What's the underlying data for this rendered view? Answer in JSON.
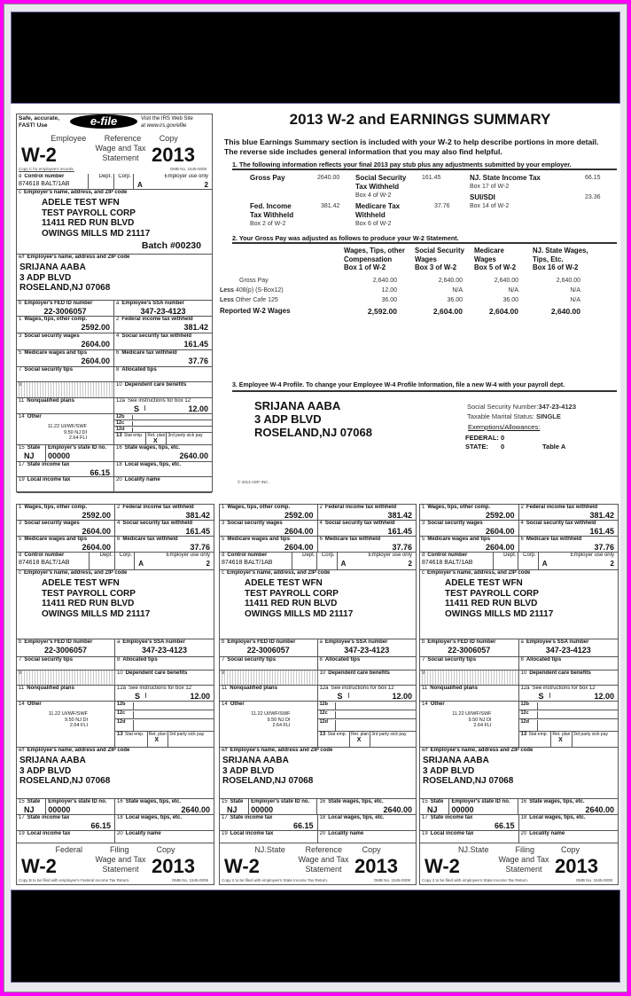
{
  "colors": {
    "frame": "#ff00ff",
    "band": "#000000"
  },
  "efile": {
    "left": "Safe, accurate, FAST! Use",
    "logo": "e-file",
    "right1": "Visit the IRS Web Site",
    "right2": "at www.irs.gov/efile"
  },
  "w2": {
    "form": "W-2",
    "year": "2013",
    "wage_tax": "Wage   and   Tax",
    "statement": "Statement",
    "omb": "OMB No. 1545-0008",
    "batch": "Batch #00230",
    "boxes": {
      "a": {
        "code": "a",
        "label": "Employee's SSA number",
        "value": "347-23-4123"
      },
      "b": {
        "code": "b",
        "label": "Employer's FED ID number",
        "value": "22-3006057"
      },
      "c": {
        "code": "c",
        "label": "Employer's name, address, and ZIP code",
        "lines": [
          "ADELE TEST WFN",
          "TEST PAYROLL CORP",
          "11411 RED RUN BLVD",
          "OWINGS MILLS MD 21117"
        ]
      },
      "d": {
        "code": "d",
        "label": "Control number",
        "value": "874618   BALT/1AB",
        "dept": "Dept.",
        "corp": "Corp.",
        "emp_use": "Employer use only",
        "emp_use_a": "A",
        "emp_use_b": "2"
      },
      "ef": {
        "code": "e/f",
        "label": "Employee's name, address and ZIP code",
        "lines": [
          "SRIJANA AABA",
          "3 ADP BLVD",
          "ROSELAND,NJ 07068"
        ]
      },
      "1": {
        "code": "1",
        "label": "Wages, tips, other comp.",
        "value": "2592.00"
      },
      "2": {
        "code": "2",
        "label": "Federal income tax withheld",
        "value": "381.42"
      },
      "3": {
        "code": "3",
        "label": "Social security wages",
        "value": "2604.00"
      },
      "4": {
        "code": "4",
        "label": "Social security tax withheld",
        "value": "161.45"
      },
      "5": {
        "code": "5",
        "label": "Medicare wages and tips",
        "value": "2604.00"
      },
      "6": {
        "code": "6",
        "label": "Medicare tax withheld",
        "value": "37.76"
      },
      "7": {
        "code": "7",
        "label": "Social security tips"
      },
      "8": {
        "code": "8",
        "label": "Allocated tips"
      },
      "9": {
        "code": "9"
      },
      "10": {
        "code": "10",
        "label": "Dependent care benefits"
      },
      "11": {
        "code": "11",
        "label": "Nonqualified plans"
      },
      "12a": {
        "code": "12a",
        "label": "See instructions for box 12",
        "letter": "S",
        "value": "12.00"
      },
      "12b": {
        "code": "12b"
      },
      "12c": {
        "code": "12c"
      },
      "12d": {
        "code": "12d"
      },
      "13": {
        "code": "13",
        "stat": "Stat emp.",
        "ret": "Ret. plan",
        "sick": "3rd party sick pay",
        "mark": "X"
      },
      "14": {
        "code": "14",
        "label": "Other",
        "lines": [
          "11.22 UI/WF/SWF",
          "9.50 NJ DI",
          "2.64 FLI"
        ]
      },
      "15": {
        "code": "15",
        "label": "State",
        "id_label": "Employer's state ID no.",
        "value": "NJ",
        "id": "00000"
      },
      "16": {
        "code": "16",
        "label": "State wages, tips, etc.",
        "value": "2640.00"
      },
      "17": {
        "code": "17",
        "label": "State income tax",
        "value": "66.15"
      },
      "18": {
        "code": "18",
        "label": "Local wages, tips, etc."
      },
      "19": {
        "code": "19",
        "label": "Local income tax"
      },
      "20": {
        "code": "20",
        "label": "Locality name"
      }
    },
    "copies": [
      {
        "t1": "Employee",
        "t2": "Reference",
        "t3": "Copy",
        "note": "Copy C for employee's records."
      },
      {
        "t1": "Federal",
        "t2": "Filing",
        "t3": "Copy",
        "note": "Copy B to be filed with employee's Federal Income Tax Return."
      },
      {
        "t1": "NJ.State",
        "t2": "Reference",
        "t3": "Copy",
        "note": "Copy 2 to be filed with employee's State Income Tax Return."
      },
      {
        "t1": "NJ.State",
        "t2": "Filing",
        "t3": "Copy",
        "note": "Copy 2 to be filed with employee's State Income Tax Return."
      }
    ]
  },
  "summary": {
    "title": "2013 W-2 and EARNINGS SUMMARY",
    "intro1": "This blue Earnings Summary section is included with your W-2 to help describe portions in more detail.",
    "intro2": "The reverse side includes general information that you may also find helpful.",
    "s1_heading": "1. The following  information reflects your final 2013 pay stub plus any adjustments submitted by your employer.",
    "s1": [
      {
        "label": "Gross Pay",
        "value": "2640.00"
      },
      {
        "label": "Fed. Income",
        "label2": "Tax Withheld",
        "sub": "Box 2 of W-2",
        "value": "381.42"
      },
      {
        "label": "Social Security",
        "label2": "Tax Withheld",
        "sub": "Box 4 of W-2",
        "value": "161.45"
      },
      {
        "label": "Medicare Tax",
        "label2": "Withheld",
        "sub": "Box 6 of W-2",
        "value": "37.76"
      },
      {
        "label": "NJ. State Income Tax",
        "sub": "Box 17 of W-2",
        "value": "66.15"
      },
      {
        "label": "SUI/SDI",
        "sub": "Box 14 of W-2",
        "value": "23.36"
      }
    ],
    "s2_heading": "2. Your Gross Pay was adjusted as follows to produce your W-2 Statement.",
    "s2_cols": [
      [
        "Wages, Tips, other",
        "Compensation",
        "Box 1 of W-2"
      ],
      [
        "Social Security",
        "Wages",
        "Box 3 of W-2"
      ],
      [
        "Medicare",
        "Wages",
        "Box 5 of W-2"
      ],
      [
        "NJ. State Wages,",
        "Tips, Etc.",
        "Box 16 of W-2"
      ]
    ],
    "s2_rows": [
      {
        "prefix": "",
        "label": "Gross Pay",
        "values": [
          "2,640.00",
          "2,640.00",
          "2,640.00",
          "2,640.00"
        ]
      },
      {
        "prefix": "Less",
        "label": "408(p)   (S-Box12)",
        "values": [
          "12.00",
          "N/A",
          "N/A",
          "N/A"
        ]
      },
      {
        "prefix": "Less",
        "label": "Other Cafe 125",
        "values": [
          "36.00",
          "36.00",
          "36.00",
          "N/A"
        ]
      },
      {
        "prefix": "Reported",
        "label": "W-2   Wages",
        "values": [
          "2,592.00",
          "2,604.00",
          "2,604.00",
          "2,640.00"
        ]
      }
    ],
    "s3_heading": "3. Employee W-4 Profile.  To change your Employee W-4 Profile Information, file a new W-4 with your payroll dept.",
    "s3_name": [
      "SRIJANA   AABA",
      "3  ADP  BLVD",
      "ROSELAND,NJ     07068"
    ],
    "ssn_label": "Social Security Number:",
    "ssn": "347-23-4123",
    "marital_label": "Taxable Marital Status:",
    "marital": "SINGLE",
    "exemptions": "Exemptions/Allowances:",
    "federal_label": "FEDERAL:",
    "federal": "0",
    "state_label": "STATE:",
    "state": "0",
    "table": "Table A",
    "copyright": "© 2013  ADP, INC."
  }
}
